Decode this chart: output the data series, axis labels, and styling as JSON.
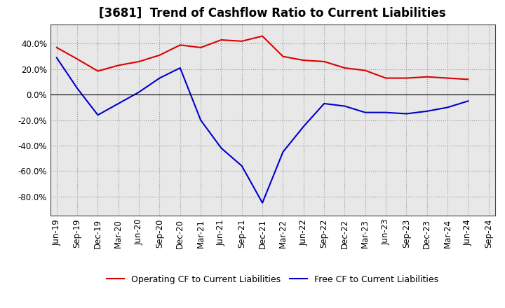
{
  "title": "[3681]  Trend of Cashflow Ratio to Current Liabilities",
  "x_labels": [
    "Jun-19",
    "Sep-19",
    "Dec-19",
    "Mar-20",
    "Jun-20",
    "Sep-20",
    "Dec-20",
    "Mar-21",
    "Jun-21",
    "Sep-21",
    "Dec-21",
    "Mar-22",
    "Jun-22",
    "Sep-22",
    "Dec-22",
    "Mar-23",
    "Jun-23",
    "Sep-23",
    "Dec-23",
    "Mar-24",
    "Jun-24",
    "Sep-24"
  ],
  "operating_cf": [
    37.0,
    28.0,
    18.5,
    23.0,
    26.0,
    31.0,
    39.0,
    37.0,
    43.0,
    42.0,
    46.0,
    30.0,
    27.0,
    26.0,
    21.0,
    19.0,
    13.0,
    13.0,
    14.0,
    13.0,
    12.0,
    null
  ],
  "free_cf": [
    29.0,
    5.0,
    -16.0,
    -7.0,
    2.0,
    13.0,
    21.0,
    -20.0,
    -42.0,
    -56.0,
    -85.0,
    -45.0,
    -25.0,
    -7.0,
    -9.0,
    -14.0,
    -14.0,
    -15.0,
    -13.0,
    -10.0,
    -5.0,
    null
  ],
  "ylim": [
    -95,
    55
  ],
  "yticks": [
    -80.0,
    -60.0,
    -40.0,
    -20.0,
    0.0,
    20.0,
    40.0
  ],
  "operating_color": "#dd0000",
  "free_color": "#0000cc",
  "plot_bg_color": "#e8e8e8",
  "fig_bg_color": "#ffffff",
  "grid_color": "#999999",
  "legend_operating": "Operating CF to Current Liabilities",
  "legend_free": "Free CF to Current Liabilities",
  "title_fontsize": 12,
  "axis_fontsize": 8.5
}
